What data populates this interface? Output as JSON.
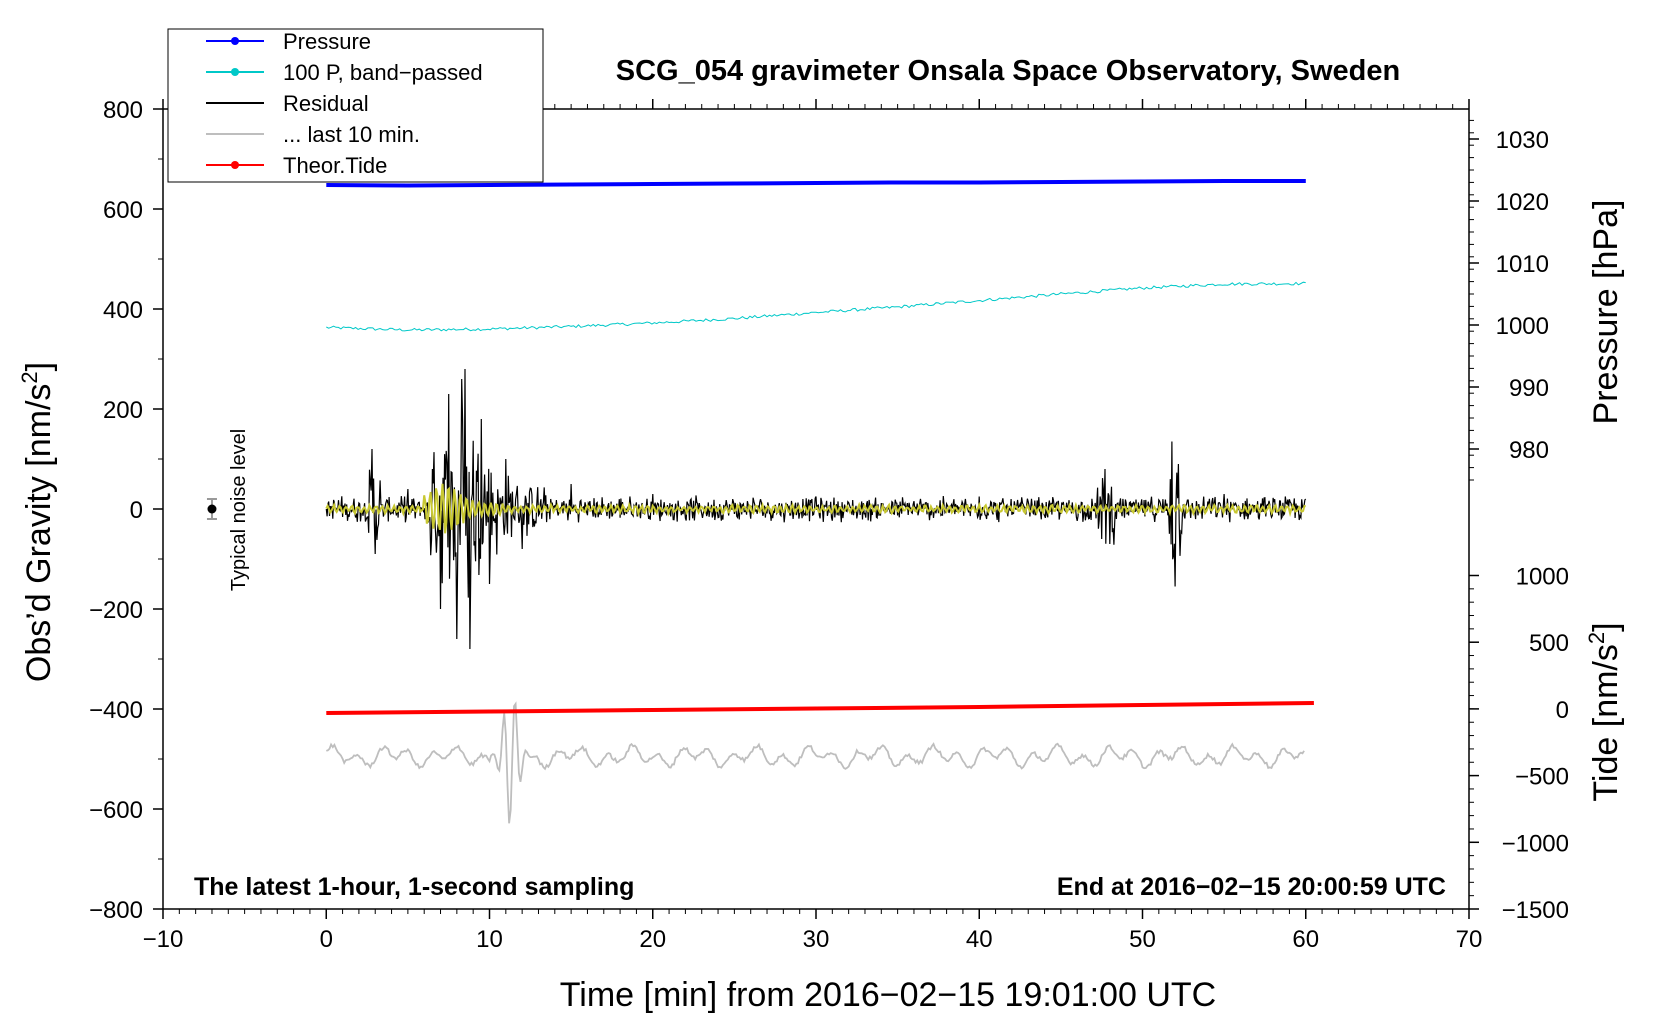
{
  "chart_data": {
    "type": "line",
    "title": "SCG_054 gravimeter Onsala Space Observatory, Sweden",
    "xlabel": "Time [min] from 2016−02−15 19:01:00 UTC",
    "ylabel_left": "Obs’d Gravity [nm/s²]",
    "ylabel_left_main": "Obs’d Gravity [nm/s",
    "ylabel_left_sup": "2",
    "ylabel_left_end": "]",
    "ylabel_right_pressure": "Pressure [hPa]",
    "ylabel_right_tide": "Tide [nm/s²]",
    "ylabel_right_tide_main": "Tide [nm/s",
    "ylabel_right_tide_sup": "2",
    "ylabel_right_tide_end": "]",
    "xlim": [
      -10,
      70
    ],
    "ylim": [
      -800,
      800
    ],
    "x_ticks": [
      -10,
      0,
      10,
      20,
      30,
      40,
      50,
      60,
      70
    ],
    "x_tick_labels": [
      "−10",
      "0",
      "10",
      "20",
      "30",
      "40",
      "50",
      "60",
      "70"
    ],
    "y_ticks": [
      800,
      600,
      400,
      200,
      0,
      -200,
      -400,
      -600,
      -800
    ],
    "y_tick_labels": [
      "800",
      "600",
      "400",
      "200",
      "0",
      "−200",
      "−400",
      "−600",
      "−800"
    ],
    "pressure_ticks": [
      1030,
      1020,
      1010,
      1000,
      990,
      980
    ],
    "pressure_tick_labels": [
      "1030",
      "1020",
      "1010",
      "1000",
      "990",
      "980"
    ],
    "pressure_axis_map": {
      "value_a": 1030,
      "gravity_a": 740,
      "value_b": 980,
      "gravity_b": 120
    },
    "tide_ticks": [
      1000,
      500,
      0,
      -500,
      -1000,
      -1500
    ],
    "tide_tick_labels": [
      "1000",
      "500",
      "0",
      "−500",
      "−1000",
      "−1500"
    ],
    "tide_axis_map": {
      "value_a": 1000,
      "gravity_a": -133,
      "value_b": -1500,
      "gravity_b": -800
    },
    "annotation_left": "The latest 1-hour, 1-second sampling",
    "annotation_right": "End at 2016−02−15 20:00:59 UTC",
    "noise_label": "Typical noise level",
    "noise_bar": {
      "x": -7,
      "y": 0,
      "error": 20
    },
    "legend": [
      {
        "label": "Pressure",
        "color": "#0000ff",
        "marker": true
      },
      {
        "label": "100 P, band−passed",
        "color": "#00c8c8",
        "marker": true
      },
      {
        "label": "Residual",
        "color": "#000000",
        "marker": false
      },
      {
        "label": "... last 10 min.",
        "color": "#bebebe",
        "marker": false
      },
      {
        "label": "Theor.Tide",
        "color": "#ff0000",
        "marker": true
      }
    ],
    "series": [
      {
        "name": "Pressure",
        "color": "#0000ff",
        "axis": "gravity",
        "x": [
          0,
          5,
          10,
          15,
          20,
          25,
          30,
          35,
          40,
          45,
          50,
          55,
          60
        ],
        "y": [
          648,
          647,
          648,
          649,
          650,
          651,
          652,
          653,
          653,
          654,
          655,
          656,
          656
        ]
      },
      {
        "name": "100 P, band−passed",
        "color": "#00c8c8",
        "axis": "gravity",
        "x": [
          0,
          5,
          10,
          15,
          20,
          25,
          30,
          35,
          40,
          45,
          50,
          55,
          60
        ],
        "y": [
          363,
          358,
          360,
          365,
          372,
          381,
          393,
          404,
          417,
          430,
          442,
          450,
          451
        ]
      },
      {
        "name": "Theor.Tide",
        "color": "#ff0000",
        "axis": "gravity",
        "x": [
          0,
          10,
          20,
          30,
          40,
          50,
          60.5
        ],
        "y": [
          -408,
          -405,
          -402,
          -399,
          -396,
          -392,
          -388
        ]
      },
      {
        "name": "Residual",
        "color": "#000000",
        "axis": "gravity",
        "x": [
          0,
          2.8,
          3.0,
          5.0,
          6.5,
          7.0,
          7.5,
          8.0,
          8.3,
          8.5,
          8.8,
          9.5,
          10.0,
          11.0,
          12.0,
          15.0,
          20.0,
          30.0,
          40.0,
          47.5,
          47.7,
          48.0,
          51.8,
          52.0,
          52.2,
          55.0,
          60.0
        ],
        "y": [
          0,
          120,
          -90,
          40,
          80,
          -200,
          230,
          -260,
          260,
          280,
          -280,
          180,
          -150,
          100,
          -80,
          50,
          30,
          25,
          25,
          -60,
          80,
          -70,
          135,
          -155,
          90,
          30,
          20
        ]
      },
      {
        "name": "... last 10 min.",
        "color": "#bebebe",
        "axis": "gravity",
        "x": [
          0,
          5,
          10,
          10.5,
          11.2,
          11.6,
          12.0,
          15,
          20,
          30,
          40,
          50,
          60
        ],
        "y": [
          -510,
          -490,
          -500,
          -440,
          -650,
          -355,
          -520,
          -490,
          -500,
          -495,
          -500,
          -495,
          -485
        ]
      },
      {
        "name": "Band-passed residual",
        "color": "#c8c832",
        "axis": "gravity",
        "x": [
          0,
          6.5,
          7.0,
          8.0,
          9.0,
          10.0,
          20.0,
          60.0
        ],
        "y": [
          0,
          50,
          -45,
          40,
          -30,
          15,
          5,
          5
        ]
      }
    ]
  }
}
